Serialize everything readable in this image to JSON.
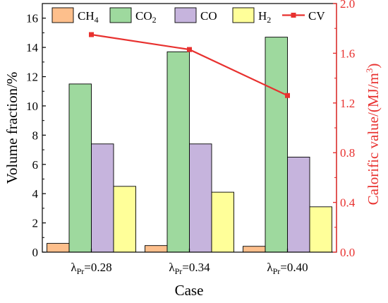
{
  "chart_data": {
    "type": "bar",
    "categories": [
      {
        "sym": "λ",
        "sub": "Pr",
        "val": "=0.28"
      },
      {
        "sym": "λ",
        "sub": "Pr",
        "val": "=0.34"
      },
      {
        "sym": "λ",
        "sub": "Pr",
        "val": "=0.40"
      }
    ],
    "xlabel": "Case",
    "ylabel": "Volume fraction/%",
    "y2label": {
      "main": "Calorific value/(MJ/m",
      "sup": "3",
      "close": ")"
    },
    "ylim": [
      0,
      17
    ],
    "y2lim": [
      0,
      2.0
    ],
    "yticks": [
      "0",
      "2",
      "4",
      "6",
      "8",
      "10",
      "12",
      "14",
      "16"
    ],
    "y2ticks": [
      "0.0",
      "0.4",
      "0.8",
      "1.2",
      "1.6",
      "2.0"
    ],
    "series": [
      {
        "name": "CH",
        "sub": "4",
        "color": "#fdbf8c",
        "values": [
          0.6,
          0.45,
          0.4
        ]
      },
      {
        "name": "CO",
        "sub": "2",
        "color": "#9ed99e",
        "values": [
          11.5,
          13.7,
          14.7
        ]
      },
      {
        "name": "CO",
        "sub": "",
        "color": "#c6b4dd",
        "values": [
          7.4,
          7.4,
          6.5
        ]
      },
      {
        "name": "H",
        "sub": "2",
        "color": "#ffff99",
        "values": [
          4.5,
          4.1,
          3.1
        ]
      }
    ],
    "line_series": {
      "name": "CV",
      "color": "#e8312f",
      "axis": "right",
      "values": [
        1.75,
        1.63,
        1.26
      ]
    },
    "legend_position": "top",
    "grid": false
  }
}
